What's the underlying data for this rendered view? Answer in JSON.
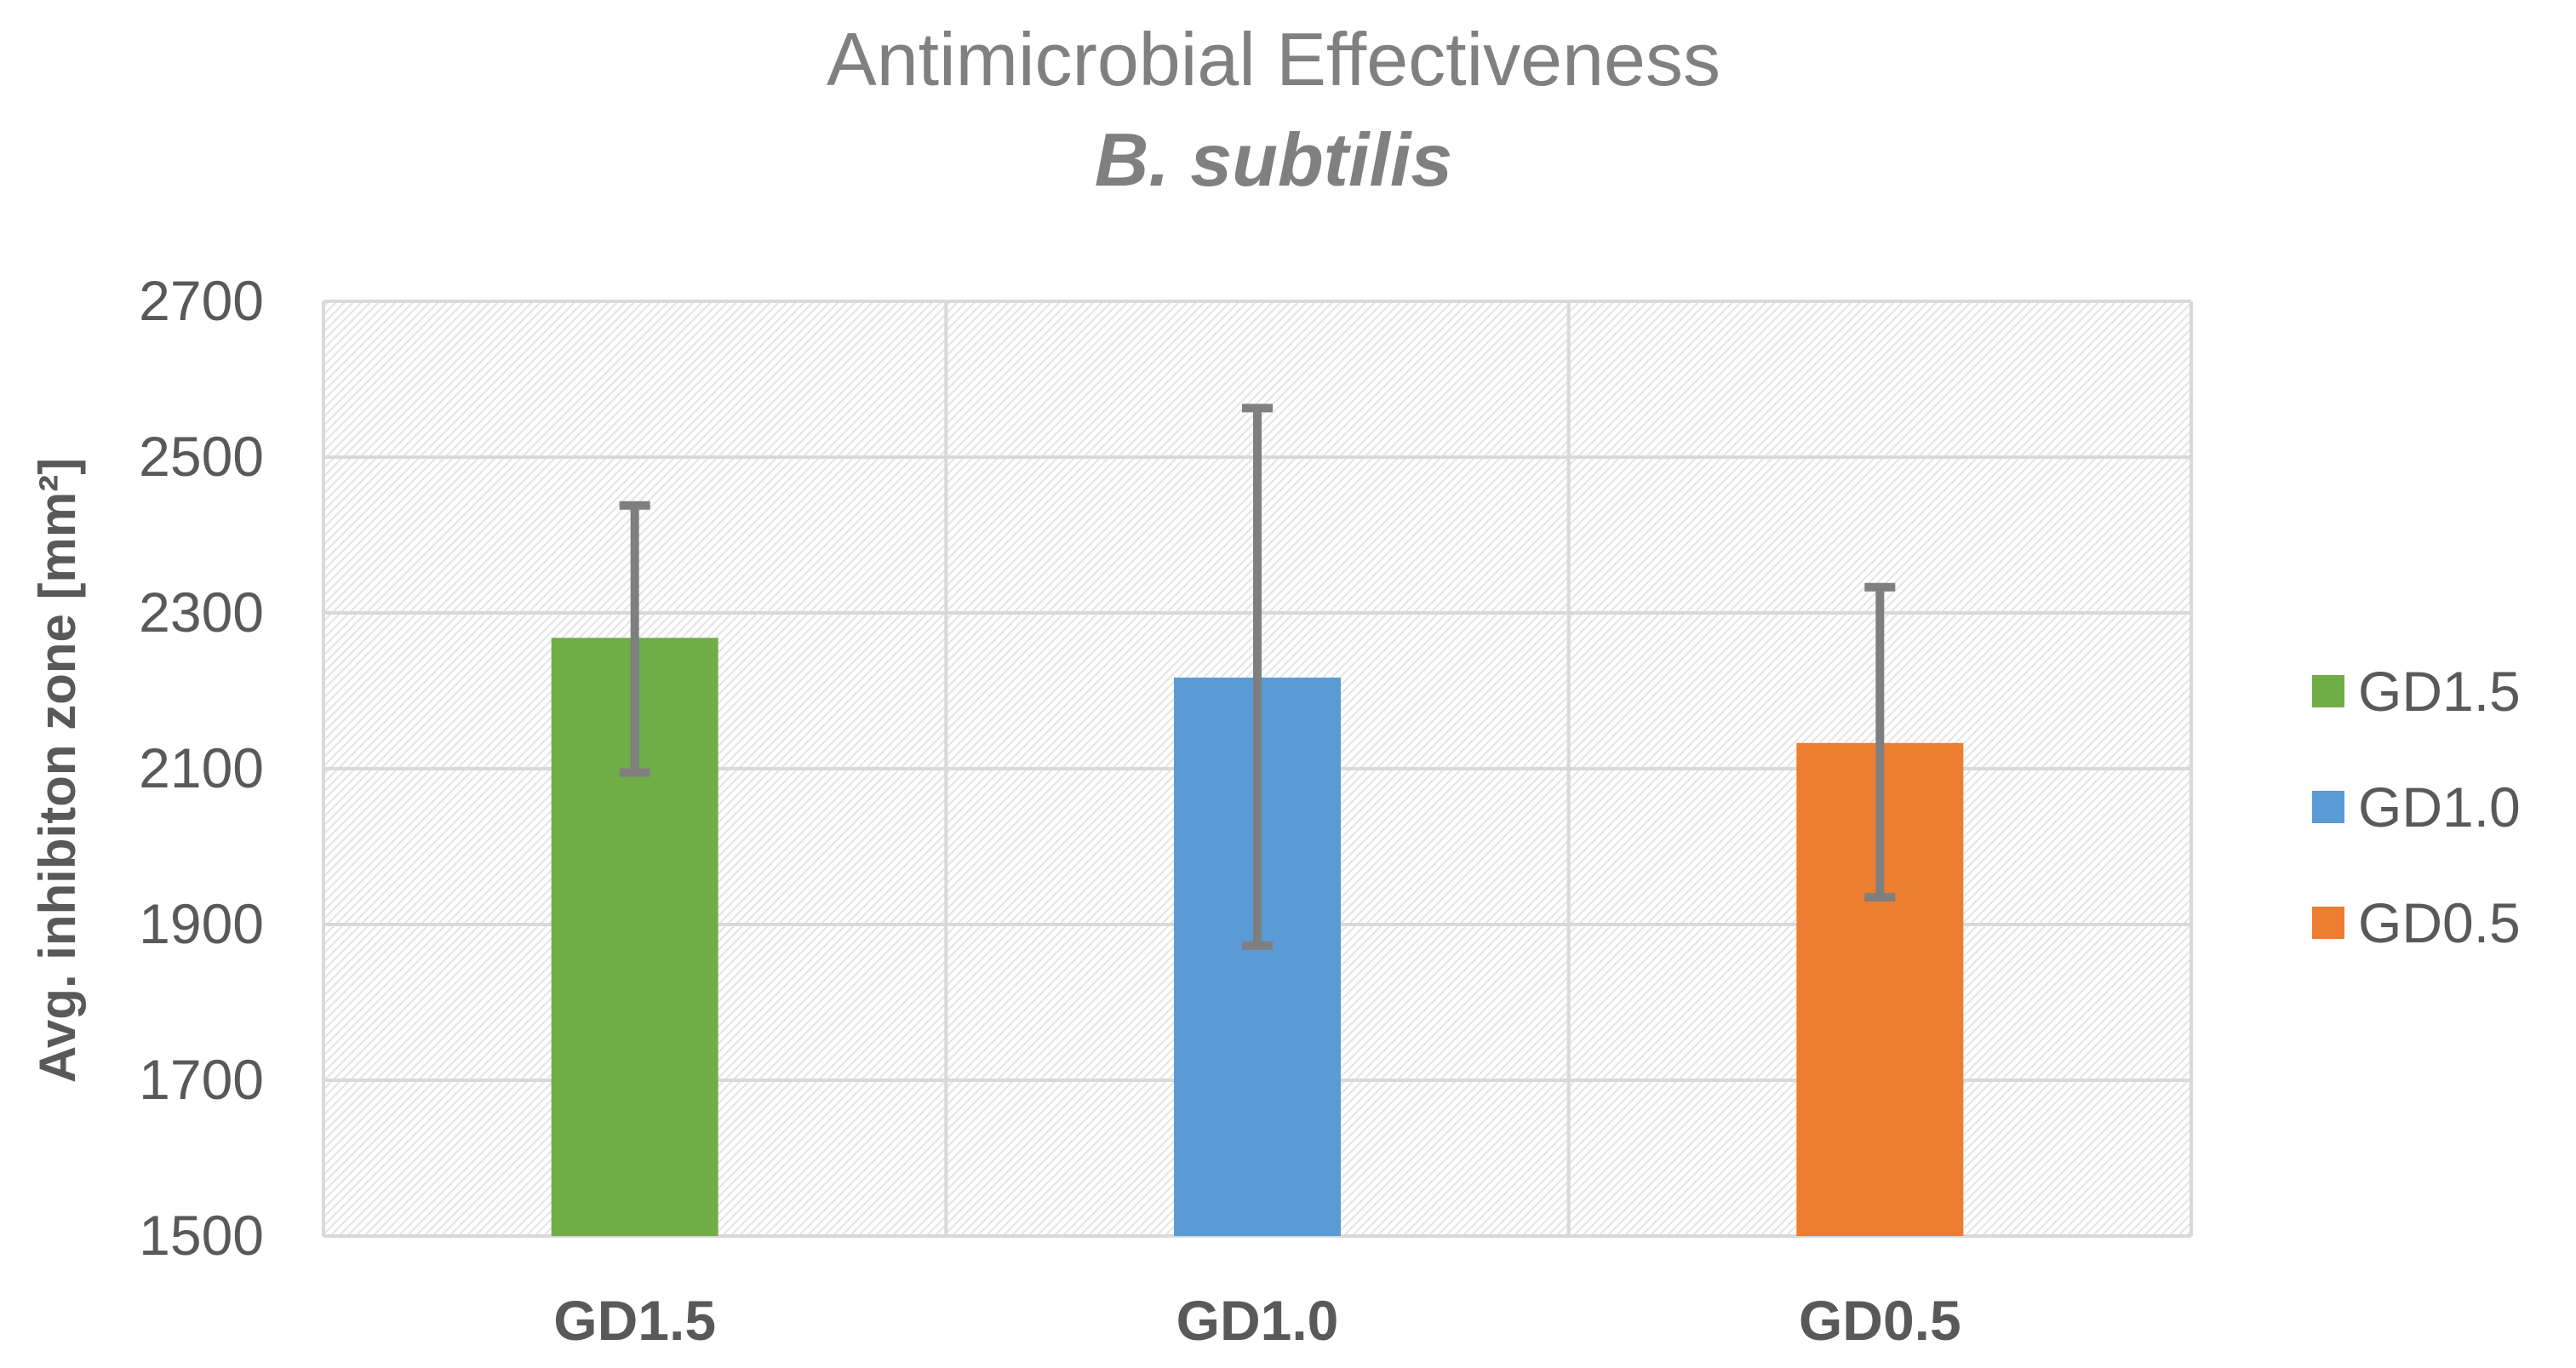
{
  "chart_data": {
    "type": "bar",
    "title": "Antimicrobial Effectiveness",
    "subtitle": "B. subtilis",
    "xlabel": "",
    "ylabel": "Avg. inhibiton zone [mm²]",
    "ylim": [
      1500,
      2700
    ],
    "yticks": [
      "2700",
      "2500",
      "2300",
      "2100",
      "1900",
      "1700",
      "1500"
    ],
    "ytick_values": [
      2700,
      2500,
      2300,
      2100,
      1900,
      1700,
      1500
    ],
    "categories": [
      "GD1.5",
      "GD1.0",
      "GD0.5"
    ],
    "values": [
      2268,
      2217,
      2133
    ],
    "error_low": [
      2095,
      1873,
      1935
    ],
    "error_high": [
      2438,
      2563,
      2333
    ],
    "colors": [
      "#70AD47",
      "#5B9BD5",
      "#ED7D31"
    ],
    "legend": [
      "GD1.5",
      "GD1.0",
      "GD0.5"
    ],
    "legend_position": "right",
    "grid": true
  },
  "colors": {
    "title": "#808080",
    "axis_text": "#595959",
    "grid": "#D9D9D9",
    "error_bar": "#7F7F7F"
  }
}
